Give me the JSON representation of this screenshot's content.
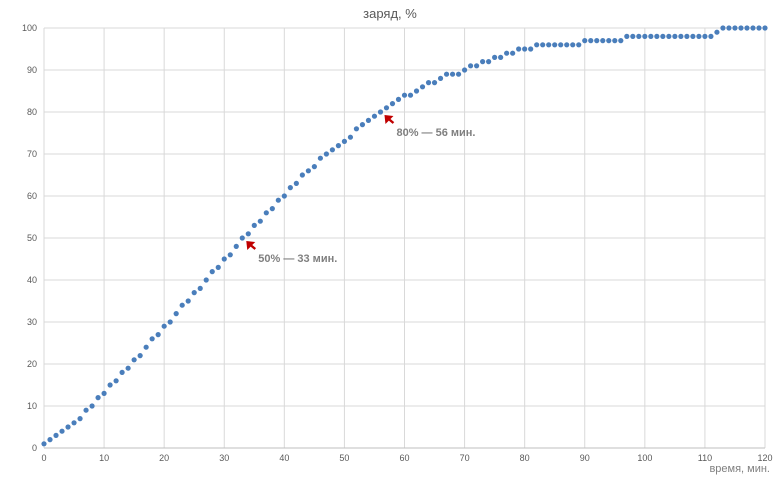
{
  "chart_data": {
    "type": "scatter",
    "title": "заряд, %",
    "xlabel": "время, мин.",
    "ylabel": "",
    "xlim": [
      0,
      120
    ],
    "ylim": [
      0,
      100
    ],
    "x_ticks": [
      0,
      10,
      20,
      30,
      40,
      50,
      60,
      70,
      80,
      90,
      100,
      110,
      120
    ],
    "y_ticks": [
      0,
      10,
      20,
      30,
      40,
      50,
      60,
      70,
      80,
      90,
      100
    ],
    "grid": true,
    "legend": "none",
    "point_color": "#4a7ebb",
    "annotation_color": "#c00000",
    "series": [
      {
        "x": [
          0,
          1,
          2,
          3,
          4,
          5,
          6,
          7,
          8,
          9,
          10,
          11,
          12,
          13,
          14,
          15,
          16,
          17,
          18,
          19,
          20,
          21,
          22,
          23,
          24,
          25,
          26,
          27,
          28,
          29,
          30,
          31,
          32,
          33,
          34,
          35,
          36,
          37,
          38,
          39,
          40,
          41,
          42,
          43,
          44,
          45,
          46,
          47,
          48,
          49,
          50,
          51,
          52,
          53,
          54,
          55,
          56,
          57,
          58,
          59,
          60,
          61,
          62,
          63,
          64,
          65,
          66,
          67,
          68,
          69,
          70,
          71,
          72,
          73,
          74,
          75,
          76,
          77,
          78,
          79,
          80,
          81,
          82,
          83,
          84,
          85,
          86,
          87,
          88,
          89,
          90,
          91,
          92,
          93,
          94,
          95,
          96,
          97,
          98,
          99,
          100,
          101,
          102,
          103,
          104,
          105,
          106,
          107,
          108,
          109,
          110,
          111,
          112,
          113,
          114,
          115,
          116,
          117,
          118,
          119,
          120
        ],
        "y": [
          1,
          2,
          3,
          4,
          5,
          6,
          7,
          9,
          10,
          12,
          13,
          15,
          16,
          18,
          19,
          21,
          22,
          24,
          26,
          27,
          29,
          30,
          32,
          34,
          35,
          37,
          38,
          40,
          42,
          43,
          45,
          46,
          48,
          50,
          51,
          53,
          54,
          56,
          57,
          59,
          60,
          62,
          63,
          65,
          66,
          67,
          69,
          70,
          71,
          72,
          73,
          74,
          76,
          77,
          78,
          79,
          80,
          81,
          82,
          83,
          84,
          84,
          85,
          86,
          87,
          87,
          88,
          89,
          89,
          89,
          90,
          91,
          91,
          92,
          92,
          93,
          93,
          94,
          94,
          95,
          95,
          95,
          96,
          96,
          96,
          96,
          96,
          96,
          96,
          96,
          97,
          97,
          97,
          97,
          97,
          97,
          97,
          98,
          98,
          98,
          98,
          98,
          98,
          98,
          98,
          98,
          98,
          98,
          98,
          98,
          98,
          98,
          99,
          100,
          100,
          100,
          100,
          100,
          100,
          100,
          100
        ]
      }
    ],
    "annotations": [
      {
        "text": "50% — 33 мин.",
        "x": 33,
        "y": 50
      },
      {
        "text": "80% — 56 мин.",
        "x": 56,
        "y": 80
      }
    ]
  }
}
